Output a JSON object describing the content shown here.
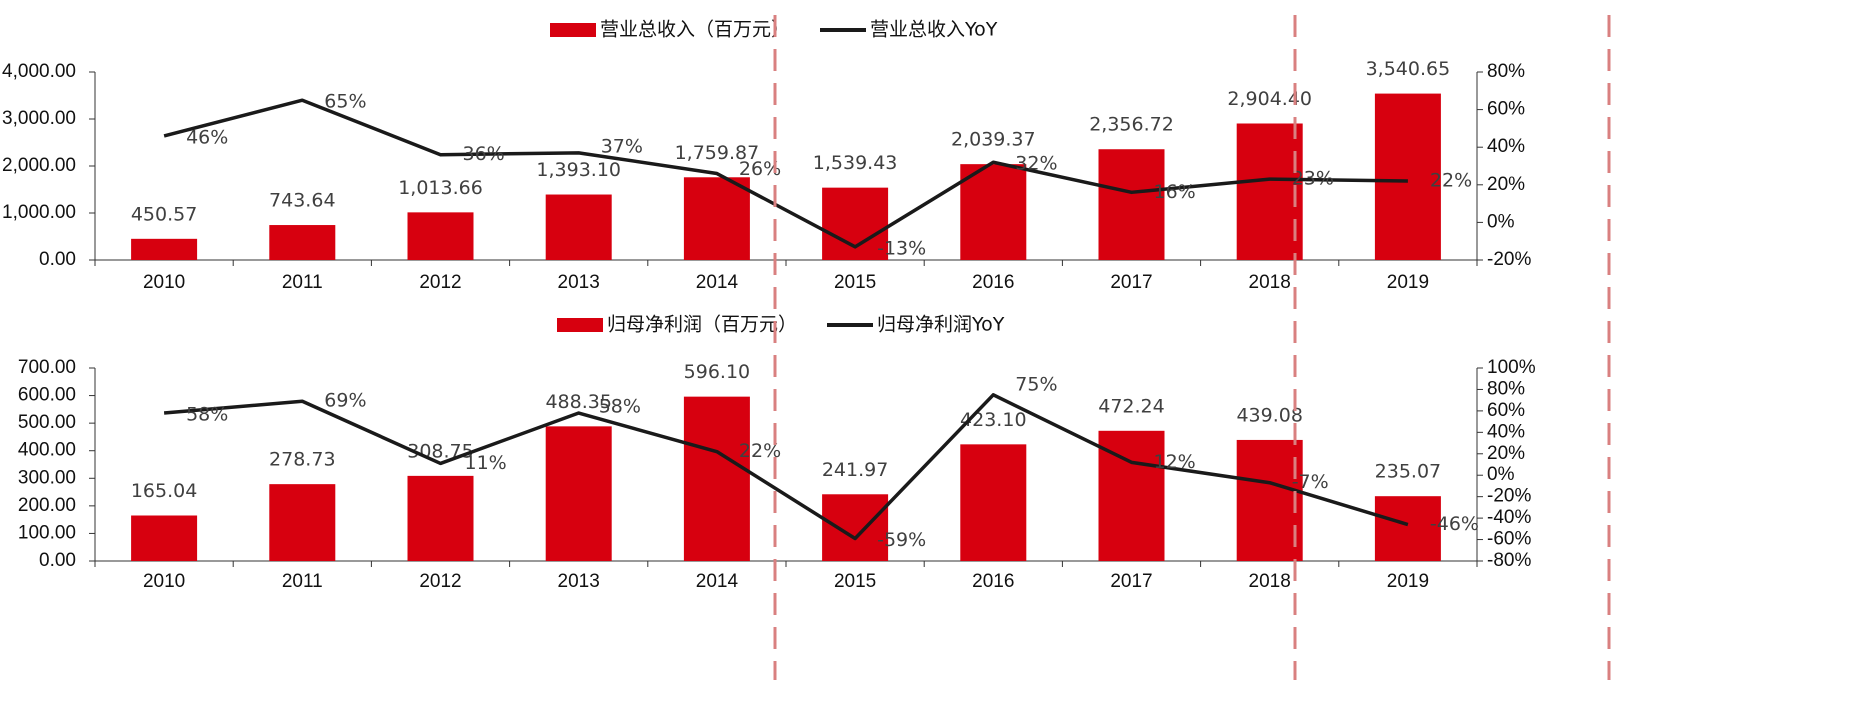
{
  "colors": {
    "bar": "#d7000f",
    "line": "#1a1a1a",
    "divider": "#d98080"
  },
  "chart_data": [
    {
      "type": "bar",
      "categories": [
        "2010",
        "2011",
        "2012",
        "2013",
        "2014",
        "2015",
        "2016",
        "2017",
        "2018",
        "2019"
      ],
      "series": [
        {
          "name": "营业总收入（百万元）",
          "axis": "left",
          "values": [
            450.57,
            743.64,
            1013.66,
            1393.1,
            1759.87,
            1539.43,
            2039.37,
            2356.72,
            2904.4,
            3540.65
          ],
          "labels": [
            "450.57",
            "743.64",
            "1,013.66",
            "1,393.10",
            "1,759.87",
            "1,539.43",
            "2,039.37",
            "2,356.72",
            "2,904.40",
            "3,540.65"
          ]
        },
        {
          "name": "营业总收入YoY",
          "type": "line",
          "axis": "right",
          "values": [
            46,
            65,
            36,
            37,
            26,
            -13,
            32,
            16,
            23,
            22
          ],
          "labels": [
            "46%",
            "65%",
            "36%",
            "37%",
            "26%",
            "-13%",
            "32%",
            "16%",
            "23%",
            "22%"
          ]
        }
      ],
      "y_left": {
        "min": 0,
        "max": 4000,
        "step": 1000,
        "tick_labels": [
          "0.00",
          "1,000.00",
          "2,000.00",
          "3,000.00",
          "4,000.00"
        ]
      },
      "y_right": {
        "min": -20,
        "max": 80,
        "step": 20,
        "tick_labels": [
          "-20%",
          "0%",
          "20%",
          "40%",
          "60%",
          "80%"
        ]
      },
      "legend_position": "top-center",
      "grid": false
    },
    {
      "type": "bar",
      "categories": [
        "2010",
        "2011",
        "2012",
        "2013",
        "2014",
        "2015",
        "2016",
        "2017",
        "2018",
        "2019"
      ],
      "series": [
        {
          "name": "归母净利润（百万元）",
          "axis": "left",
          "values": [
            165.04,
            278.73,
            308.75,
            488.35,
            596.1,
            241.97,
            423.1,
            472.24,
            439.08,
            235.07
          ],
          "labels": [
            "165.04",
            "278.73",
            "308.75",
            "488.35",
            "596.10",
            "241.97",
            "423.10",
            "472.24",
            "439.08",
            "235.07"
          ]
        },
        {
          "name": "归母净利润YoY",
          "type": "line",
          "axis": "right",
          "values": [
            58,
            69,
            11,
            58,
            22,
            -59,
            75,
            12,
            -7,
            -46
          ],
          "labels": [
            "58%",
            "69%",
            "11%",
            "58%",
            "22%",
            "-59%",
            "75%",
            "12%",
            "-7%",
            "-46%"
          ]
        }
      ],
      "y_left": {
        "min": 0,
        "max": 700,
        "step": 100,
        "tick_labels": [
          "0.00",
          "100.00",
          "200.00",
          "300.00",
          "400.00",
          "500.00",
          "600.00",
          "700.00"
        ]
      },
      "y_right": {
        "min": -80,
        "max": 100,
        "step": 20,
        "tick_labels": [
          "-80%",
          "-60%",
          "-40%",
          "-20%",
          "0%",
          "20%",
          "40%",
          "60%",
          "80%",
          "100%"
        ]
      },
      "legend_position": "top-center",
      "grid": false
    }
  ]
}
